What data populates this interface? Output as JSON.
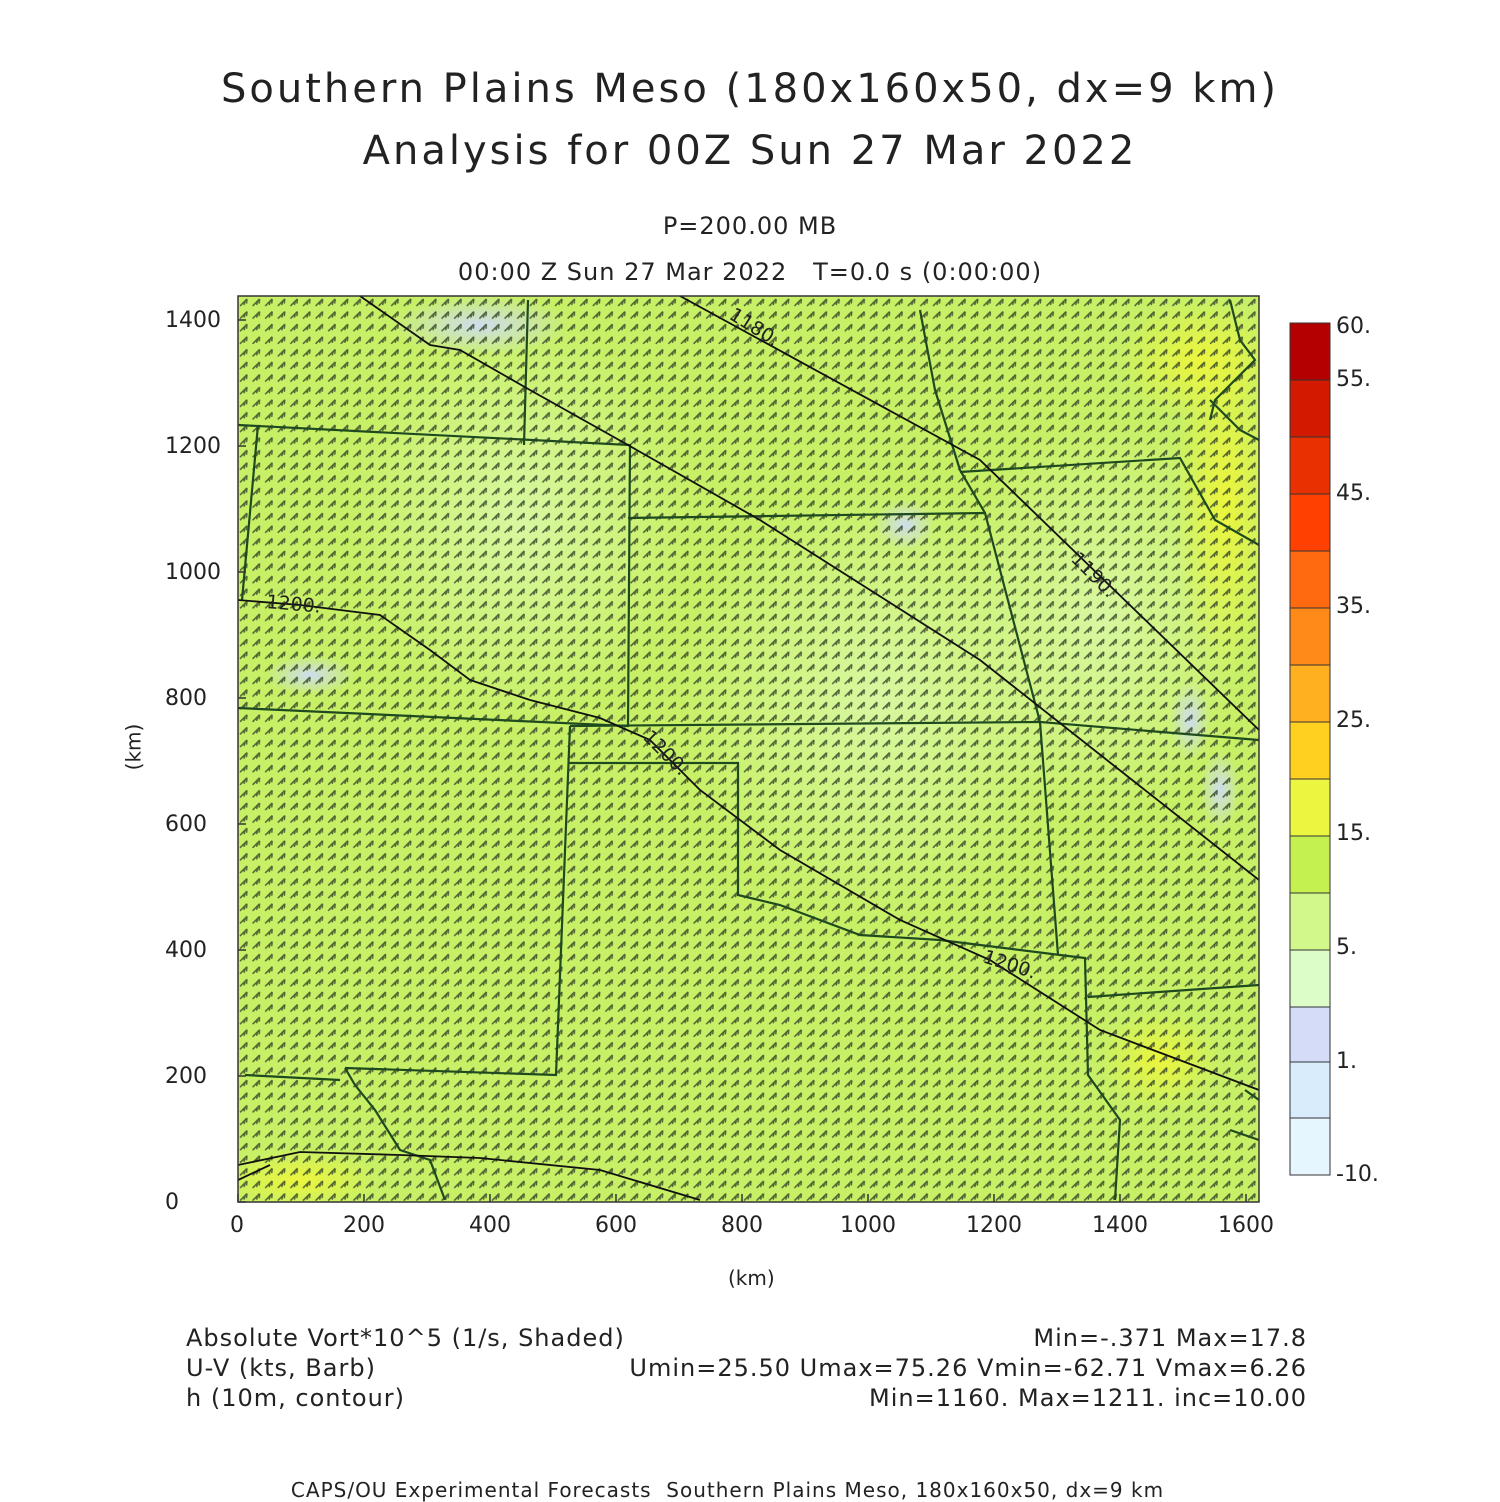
{
  "header": {
    "title_line1": "Southern Plains Meso (180x160x50, dx=9 km)",
    "title_line2": "Analysis for 00Z Sun 27 Mar 2022",
    "level": "P=200.00 MB",
    "valid_time": "00:00 Z Sun 27 Mar 2022   T=0.0 s (0:00:00)"
  },
  "axes": {
    "x_label": "(km)",
    "y_label": "(km)",
    "x_ticks": [
      "0",
      "200",
      "400",
      "600",
      "800",
      "1000",
      "1200",
      "1400",
      "1600"
    ],
    "y_ticks": [
      "0",
      "200",
      "400",
      "600",
      "800",
      "1000",
      "1200",
      "1400"
    ],
    "x_range_km": [
      0,
      1620
    ],
    "y_range_km": [
      0,
      1440
    ]
  },
  "colorbar": {
    "labels": [
      "60.",
      "55.",
      "45.",
      "35.",
      "25.",
      "15.",
      "5.",
      "1.",
      "-10."
    ],
    "colors_top_to_bottom": [
      "#b40000",
      "#d21a00",
      "#e83000",
      "#ff4000",
      "#ff6a10",
      "#ff8a18",
      "#ffb020",
      "#ffd020",
      "#ecf640",
      "#c4f050",
      "#d2f88c",
      "#dcfcc8",
      "#d4dcf8",
      "#d8ecfc",
      "#e6f6fe"
    ]
  },
  "contours": {
    "labels": [
      "1180.",
      "1190.",
      "1200.",
      "1200.",
      "1200.",
      "1200."
    ]
  },
  "footer": {
    "var1_name": "Absolute Vort*10^5 (1/s, Shaded)",
    "var1_stats": "Min=-.371 Max=17.8",
    "var2_name": "U-V (kts, Barb)",
    "var2_stats": "Umin=25.50 Umax=75.26 Vmin=-62.71 Vmax=6.26",
    "var3_name": "h (10m, contour)",
    "var3_stats": "Min=1160. Max=1211. inc=10.00",
    "credit": "CAPS/OU Experimental Forecasts  Southern Plains Meso, 180x160x50, dx=9 km"
  }
}
